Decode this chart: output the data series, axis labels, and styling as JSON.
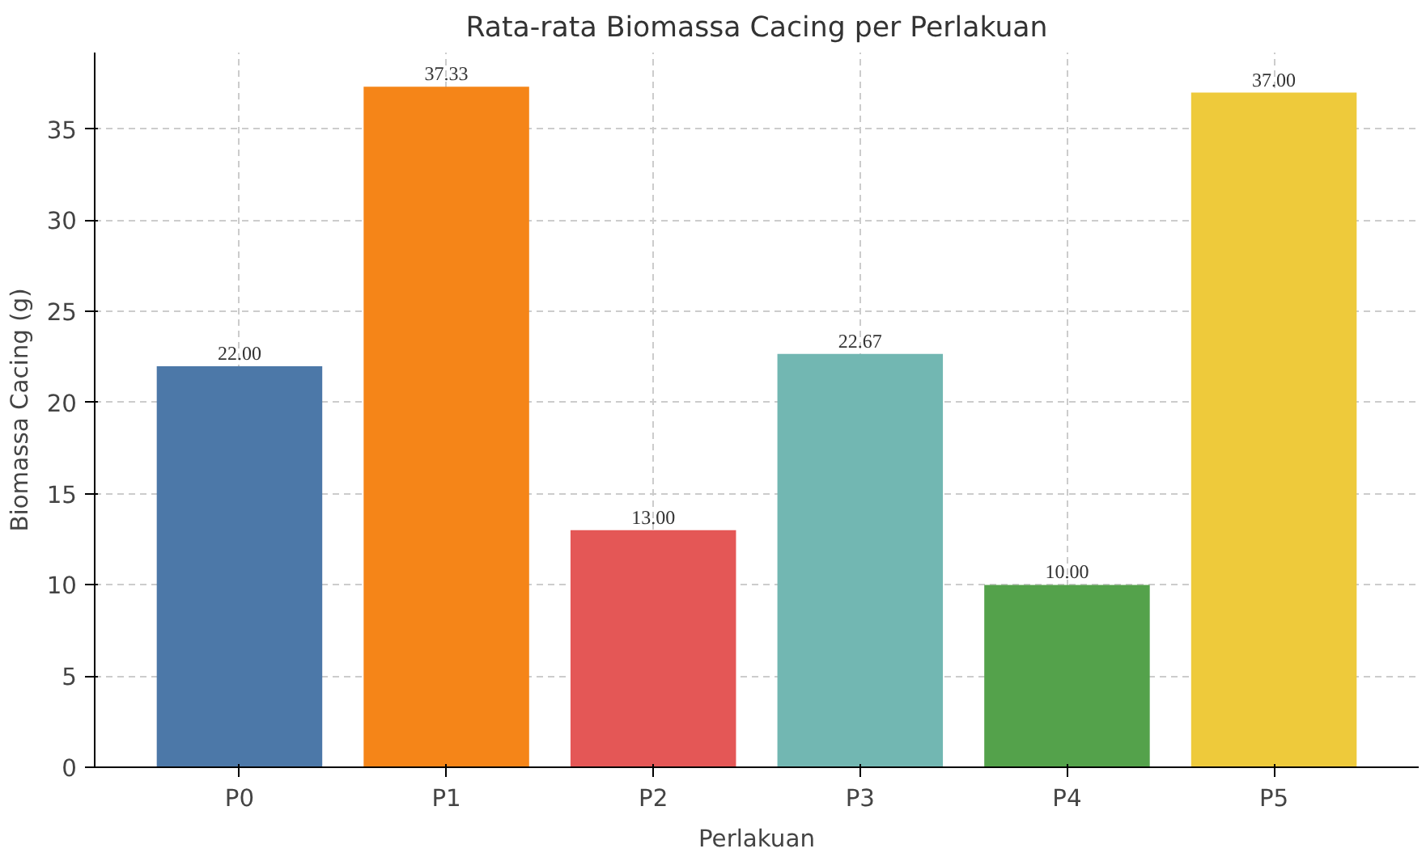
{
  "chart_data": {
    "type": "bar",
    "title": "Rata-rata Biomassa Cacing per Perlakuan",
    "xlabel": "Perlakuan",
    "ylabel": "Biomassa Cacing (g)",
    "categories": [
      "P0",
      "P1",
      "P2",
      "P3",
      "P4",
      "P5"
    ],
    "values": [
      22.0,
      37.33,
      13.0,
      22.67,
      10.0,
      37.0
    ],
    "colors": [
      "#4c78a8",
      "#f58518",
      "#e45756",
      "#72b7b2",
      "#54a24b",
      "#eeca3b"
    ],
    "value_labels": [
      "22.00",
      "37.33",
      "13.00",
      "22.67",
      "10.00",
      "37.00"
    ],
    "ylim": [
      0,
      39.2
    ],
    "yticks": [
      0,
      5,
      10,
      15,
      20,
      25,
      30,
      35
    ],
    "grid": true
  }
}
